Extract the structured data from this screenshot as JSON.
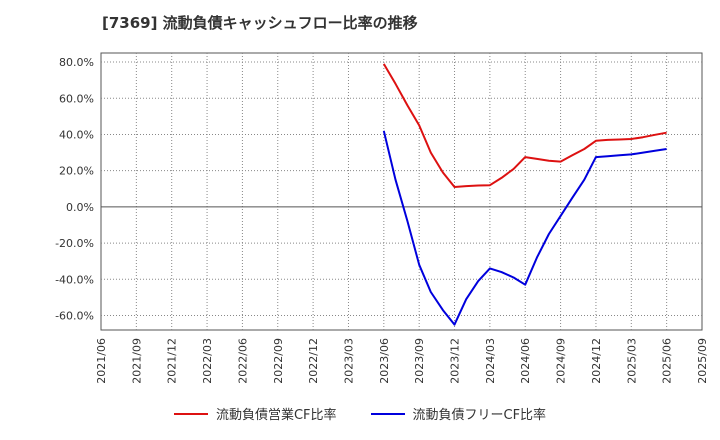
{
  "chart_data": {
    "type": "line",
    "title": "[7369]  流動負債キャッシュフロー比率の推移",
    "xlabel": "",
    "ylabel": "",
    "ylim": [
      -68,
      85
    ],
    "y_ticks": [
      80,
      60,
      40,
      20,
      0,
      -20,
      -40,
      -60
    ],
    "y_tick_labels": [
      "80.0%",
      "60.0%",
      "40.0%",
      "20.0%",
      "0.0%",
      "-20.0%",
      "-40.0%",
      "-60.0%"
    ],
    "x_range": [
      0,
      17
    ],
    "x_tick_labels": [
      "2021/06",
      "2021/09",
      "2021/12",
      "2022/03",
      "2022/06",
      "2022/09",
      "2022/12",
      "2023/03",
      "2023/06",
      "2023/09",
      "2023/12",
      "2024/03",
      "2024/06",
      "2024/09",
      "2024/12",
      "2025/03",
      "2025/06",
      "2025/09"
    ],
    "grid": true,
    "legend_position": "bottom",
    "series": [
      {
        "name": "流動負債営業CF比率",
        "color": "#dd1111",
        "x": [
          8,
          8.33,
          8.67,
          9,
          9.33,
          9.67,
          10,
          10.33,
          10.67,
          11,
          11.33,
          11.67,
          12,
          12.33,
          12.67,
          13,
          13.33,
          13.67,
          14,
          14.33,
          14.67,
          15,
          15.33,
          15.67,
          16
        ],
        "values": [
          79,
          68,
          56,
          45,
          30,
          19,
          11,
          11.5,
          11.8,
          12,
          16,
          21,
          27.5,
          26.5,
          25.5,
          25,
          28.5,
          32,
          36.5,
          37,
          37.2,
          37.5,
          38.5,
          39.8,
          41
        ]
      },
      {
        "name": "流動負債フリーCF比率",
        "color": "#0000dd",
        "x": [
          8,
          8.33,
          8.67,
          9,
          9.33,
          9.67,
          10,
          10.33,
          10.67,
          11,
          11.33,
          11.67,
          12,
          12.33,
          12.67,
          13,
          13.33,
          13.67,
          14,
          14.33,
          14.67,
          15,
          15.33,
          15.67,
          16
        ],
        "values": [
          42,
          15,
          -8,
          -32,
          -47,
          -57,
          -65,
          -51,
          -41,
          -34,
          -36,
          -39,
          -43,
          -28,
          -15,
          -5,
          5,
          15,
          27.5,
          28,
          28.5,
          29,
          30,
          31,
          32
        ]
      }
    ]
  }
}
